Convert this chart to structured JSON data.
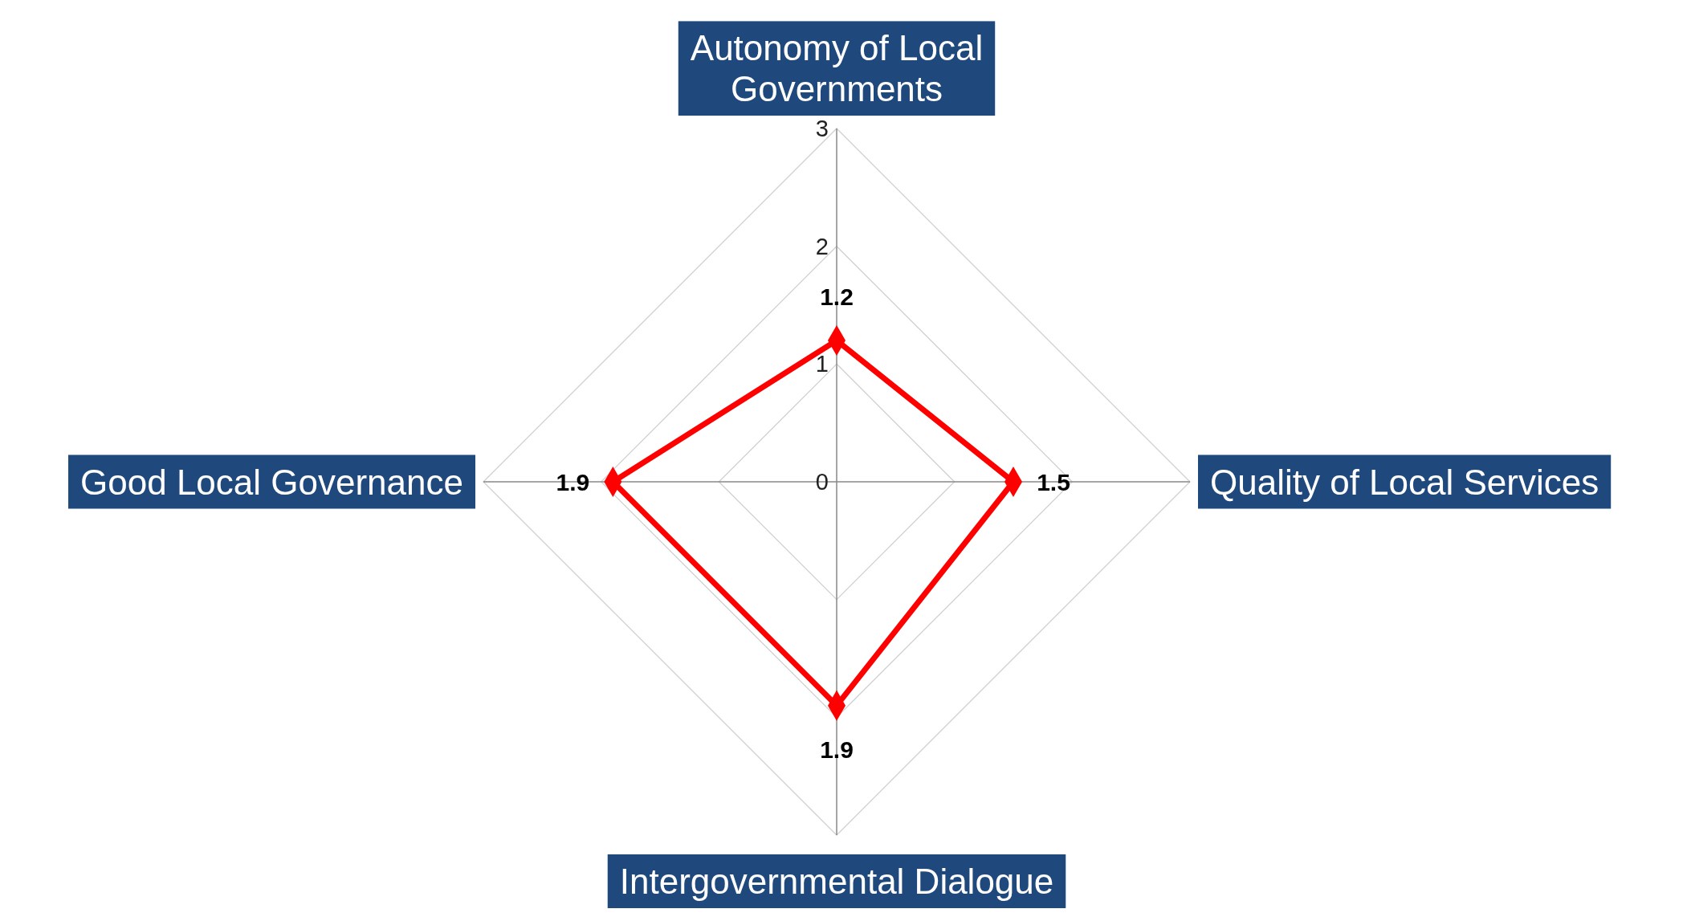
{
  "chart_data": {
    "type": "radar",
    "categories": [
      "Autonomy of Local Governments",
      "Quality of Local Services",
      "Intergovernmental Dialogue",
      "Good Local Governance"
    ],
    "series": [
      {
        "color": "#ff0000",
        "values": [
          1.2,
          1.5,
          1.9,
          1.9
        ]
      }
    ],
    "ylim": [
      0,
      3
    ],
    "yticks": [
      0,
      1,
      2,
      3
    ],
    "grid": true,
    "marker": "diamond",
    "data_labels": true
  }
}
